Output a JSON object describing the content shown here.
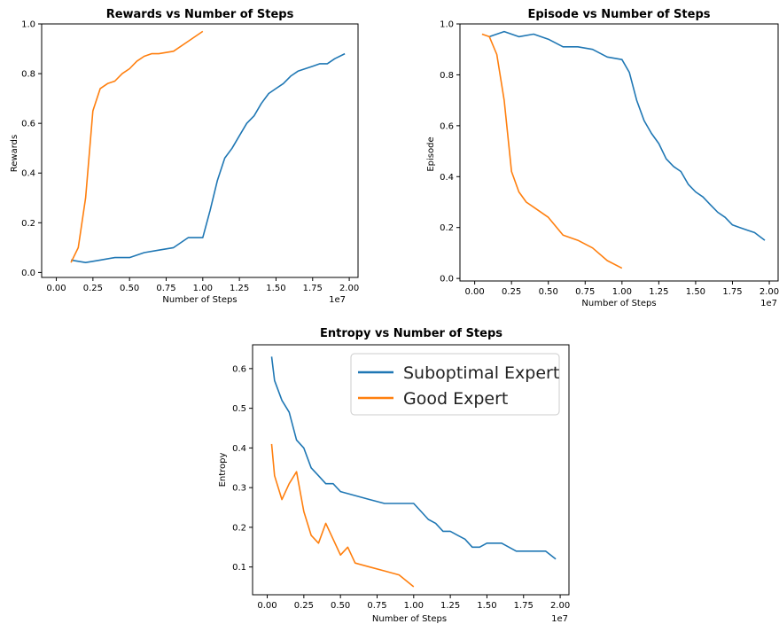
{
  "colors": {
    "suboptimal": "#1f77b4",
    "good": "#ff7f0e"
  },
  "chart_data": [
    {
      "type": "line",
      "title": "Rewards vs Number of Steps",
      "xlabel": "Number of Steps",
      "ylabel": "Rewards",
      "x_scale_label": "1e7",
      "xlim": [
        -0.1,
        2.06
      ],
      "ylim": [
        -0.02,
        1.0
      ],
      "xticks": [
        0.0,
        0.25,
        0.5,
        0.75,
        1.0,
        1.25,
        1.5,
        1.75,
        2.0
      ],
      "xtick_labels": [
        "0.00",
        "0.25",
        "0.50",
        "0.75",
        "1.00",
        "1.25",
        "1.50",
        "1.75",
        "2.00"
      ],
      "yticks": [
        0.0,
        0.2,
        0.4,
        0.6,
        0.8,
        1.0
      ],
      "ytick_labels": [
        "0.0",
        "0.2",
        "0.4",
        "0.6",
        "0.8",
        "1.0"
      ],
      "grid": false,
      "series": [
        {
          "name": "Suboptimal Expert",
          "x": [
            0.1,
            0.2,
            0.3,
            0.4,
            0.5,
            0.6,
            0.7,
            0.8,
            0.9,
            1.0,
            1.05,
            1.1,
            1.15,
            1.2,
            1.25,
            1.3,
            1.35,
            1.4,
            1.45,
            1.5,
            1.55,
            1.6,
            1.65,
            1.7,
            1.75,
            1.8,
            1.85,
            1.9,
            1.97
          ],
          "y": [
            0.05,
            0.04,
            0.05,
            0.06,
            0.06,
            0.08,
            0.09,
            0.1,
            0.14,
            0.14,
            0.25,
            0.37,
            0.46,
            0.5,
            0.55,
            0.6,
            0.63,
            0.68,
            0.72,
            0.74,
            0.76,
            0.79,
            0.81,
            0.82,
            0.83,
            0.84,
            0.84,
            0.86,
            0.88
          ]
        },
        {
          "name": "Good Expert",
          "x": [
            0.1,
            0.15,
            0.2,
            0.25,
            0.3,
            0.35,
            0.4,
            0.45,
            0.5,
            0.55,
            0.6,
            0.65,
            0.7,
            0.8,
            0.9,
            1.0
          ],
          "y": [
            0.04,
            0.1,
            0.3,
            0.65,
            0.74,
            0.76,
            0.77,
            0.8,
            0.82,
            0.85,
            0.87,
            0.88,
            0.88,
            0.89,
            0.93,
            0.97
          ]
        }
      ]
    },
    {
      "type": "line",
      "title": "Episode vs Number of Steps",
      "xlabel": "Number of Steps",
      "ylabel": "Episode",
      "x_scale_label": "1e7",
      "xlim": [
        -0.1,
        2.06
      ],
      "ylim": [
        -0.01,
        1.0
      ],
      "xticks": [
        0.0,
        0.25,
        0.5,
        0.75,
        1.0,
        1.25,
        1.5,
        1.75,
        2.0
      ],
      "xtick_labels": [
        "0.00",
        "0.25",
        "0.50",
        "0.75",
        "1.00",
        "1.25",
        "1.50",
        "1.75",
        "2.00"
      ],
      "yticks": [
        0.0,
        0.2,
        0.4,
        0.6,
        0.8,
        1.0
      ],
      "ytick_labels": [
        "0.0",
        "0.2",
        "0.4",
        "0.6",
        "0.8",
        "1.0"
      ],
      "grid": false,
      "series": [
        {
          "name": "Suboptimal Expert",
          "x": [
            0.1,
            0.2,
            0.3,
            0.4,
            0.5,
            0.6,
            0.7,
            0.8,
            0.9,
            1.0,
            1.05,
            1.1,
            1.15,
            1.2,
            1.25,
            1.3,
            1.35,
            1.4,
            1.45,
            1.5,
            1.55,
            1.6,
            1.65,
            1.7,
            1.75,
            1.8,
            1.85,
            1.9,
            1.97
          ],
          "y": [
            0.95,
            0.97,
            0.95,
            0.96,
            0.94,
            0.91,
            0.91,
            0.9,
            0.87,
            0.86,
            0.81,
            0.7,
            0.62,
            0.57,
            0.53,
            0.47,
            0.44,
            0.42,
            0.37,
            0.34,
            0.32,
            0.29,
            0.26,
            0.24,
            0.21,
            0.2,
            0.19,
            0.18,
            0.15
          ]
        },
        {
          "name": "Good Expert",
          "x": [
            0.05,
            0.1,
            0.15,
            0.2,
            0.25,
            0.3,
            0.35,
            0.4,
            0.5,
            0.6,
            0.7,
            0.8,
            0.9,
            1.0
          ],
          "y": [
            0.96,
            0.95,
            0.88,
            0.7,
            0.42,
            0.34,
            0.3,
            0.28,
            0.24,
            0.17,
            0.15,
            0.12,
            0.07,
            0.04
          ]
        }
      ]
    },
    {
      "type": "line",
      "title": "Entropy vs Number of Steps",
      "xlabel": "Number of Steps",
      "ylabel": "Entropy",
      "x_scale_label": "1e7",
      "xlim": [
        -0.1,
        2.06
      ],
      "ylim": [
        0.03,
        0.66
      ],
      "xticks": [
        0.0,
        0.25,
        0.5,
        0.75,
        1.0,
        1.25,
        1.5,
        1.75,
        2.0
      ],
      "xtick_labels": [
        "0.00",
        "0.25",
        "0.50",
        "0.75",
        "1.00",
        "1.25",
        "1.50",
        "1.75",
        "2.00"
      ],
      "yticks": [
        0.1,
        0.2,
        0.3,
        0.4,
        0.5,
        0.6
      ],
      "ytick_labels": [
        "0.1",
        "0.2",
        "0.3",
        "0.4",
        "0.5",
        "0.6"
      ],
      "grid": false,
      "legend": {
        "position": "top-right",
        "entries": [
          "Suboptimal Expert",
          "Good Expert"
        ]
      },
      "series": [
        {
          "name": "Suboptimal Expert",
          "x": [
            0.03,
            0.05,
            0.1,
            0.15,
            0.2,
            0.25,
            0.3,
            0.35,
            0.4,
            0.45,
            0.5,
            0.6,
            0.7,
            0.8,
            0.9,
            1.0,
            1.05,
            1.1,
            1.15,
            1.2,
            1.25,
            1.3,
            1.35,
            1.4,
            1.45,
            1.5,
            1.6,
            1.7,
            1.8,
            1.9,
            1.97
          ],
          "y": [
            0.63,
            0.57,
            0.52,
            0.49,
            0.42,
            0.4,
            0.35,
            0.33,
            0.31,
            0.31,
            0.29,
            0.28,
            0.27,
            0.26,
            0.26,
            0.26,
            0.24,
            0.22,
            0.21,
            0.19,
            0.19,
            0.18,
            0.17,
            0.15,
            0.15,
            0.16,
            0.16,
            0.14,
            0.14,
            0.14,
            0.12
          ]
        },
        {
          "name": "Good Expert",
          "x": [
            0.03,
            0.05,
            0.1,
            0.15,
            0.2,
            0.25,
            0.3,
            0.35,
            0.4,
            0.45,
            0.5,
            0.55,
            0.6,
            0.7,
            0.8,
            0.9,
            1.0
          ],
          "y": [
            0.41,
            0.33,
            0.27,
            0.31,
            0.34,
            0.24,
            0.18,
            0.16,
            0.21,
            0.17,
            0.13,
            0.15,
            0.11,
            0.1,
            0.09,
            0.08,
            0.05
          ]
        }
      ]
    }
  ]
}
